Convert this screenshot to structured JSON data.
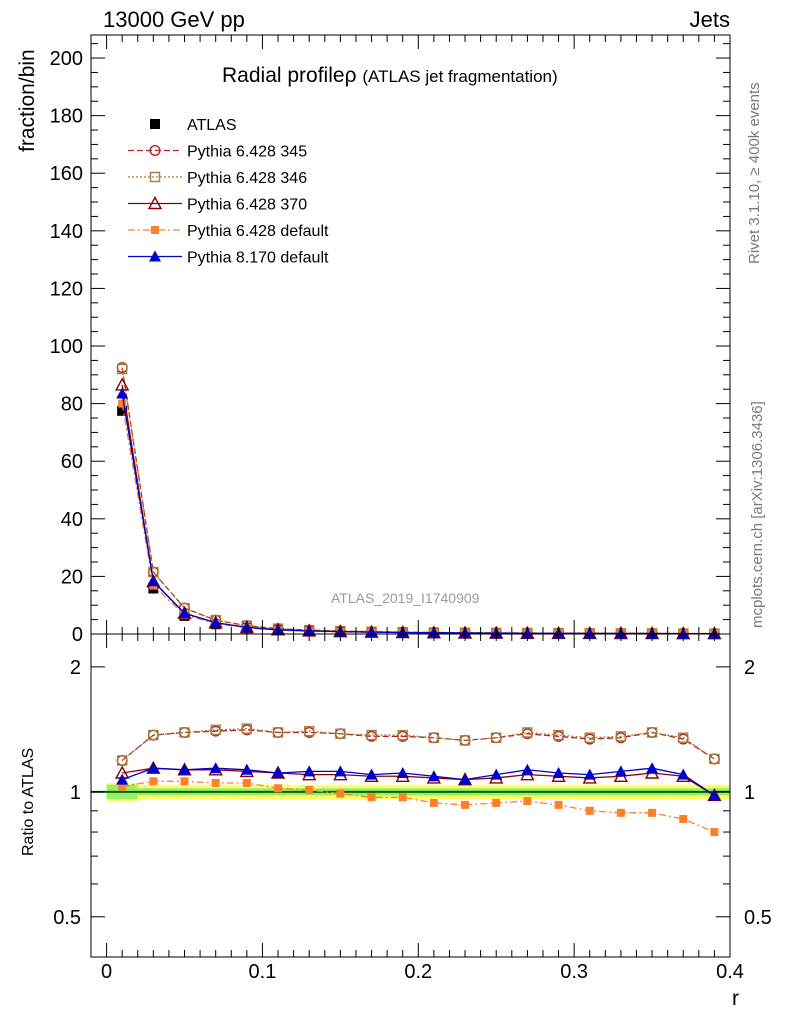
{
  "header": {
    "left": "13000 GeV pp",
    "right": "Jets"
  },
  "side": {
    "rivet": "Rivet 3.1.10, ≥ 400k events",
    "mcplots": "mcplots.cern.ch [arXiv:1306.3436]"
  },
  "chart_data": [
    {
      "type": "line",
      "title": "Radial profile",
      "title_symbol": "ρ",
      "subtitle": "(ATLAS jet fragmentation)",
      "ylabel": "fraction/bin",
      "xlabel": "r",
      "watermark": "ATLAS_2019_I1740909",
      "xlim": [
        -0.01,
        0.4
      ],
      "ylim": [
        0,
        208
      ],
      "yticks": [
        0,
        20,
        40,
        60,
        80,
        100,
        120,
        140,
        160,
        180,
        200
      ],
      "x": [
        0.01,
        0.03,
        0.05,
        0.07,
        0.09,
        0.11,
        0.13,
        0.15,
        0.17,
        0.19,
        0.21,
        0.23,
        0.25,
        0.27,
        0.29,
        0.31,
        0.33,
        0.35,
        0.37,
        0.39
      ],
      "legend_position": "top-left",
      "series": [
        {
          "name": "ATLAS",
          "color": "#000000",
          "marker": "square-filled",
          "dash": "none",
          "values": [
            77.5,
            15.8,
            6.3,
            3.4,
            2.0,
            1.3,
            0.95,
            0.72,
            0.57,
            0.46,
            0.38,
            0.32,
            0.27,
            0.23,
            0.2,
            0.17,
            0.15,
            0.13,
            0.12,
            0.11
          ]
        },
        {
          "name": "Pythia 6.428 345",
          "color": "#b22222",
          "marker": "circle-open",
          "dash": "6,3",
          "values": [
            92.5,
            21.5,
            9.0,
            4.8,
            2.9,
            1.85,
            1.35,
            1.02,
            0.8,
            0.64,
            0.52,
            0.44,
            0.38,
            0.33,
            0.28,
            0.24,
            0.21,
            0.19,
            0.16,
            0.14
          ]
        },
        {
          "name": "Pythia 6.428 346",
          "color": "#a67c39",
          "marker": "square-open",
          "dash": "2,2",
          "values": [
            92.0,
            21.5,
            9.0,
            4.8,
            2.9,
            1.85,
            1.35,
            1.02,
            0.8,
            0.64,
            0.52,
            0.44,
            0.38,
            0.33,
            0.28,
            0.24,
            0.21,
            0.19,
            0.16,
            0.14
          ]
        },
        {
          "name": "Pythia 6.428 370",
          "color": "#8b0000",
          "marker": "triangle-open",
          "dash": "none",
          "values": [
            86.5,
            18.2,
            7.2,
            3.9,
            2.3,
            1.45,
            1.08,
            0.82,
            0.64,
            0.52,
            0.42,
            0.35,
            0.3,
            0.26,
            0.22,
            0.19,
            0.17,
            0.15,
            0.13,
            0.11
          ]
        },
        {
          "name": "Pythia 6.428 default",
          "color": "#ff7f2a",
          "marker": "square-filled-small",
          "dash": "7,3,2,3",
          "values": [
            80.0,
            16.8,
            6.7,
            3.6,
            2.1,
            1.33,
            0.97,
            0.72,
            0.56,
            0.45,
            0.36,
            0.3,
            0.26,
            0.22,
            0.19,
            0.16,
            0.14,
            0.12,
            0.1,
            0.09
          ]
        },
        {
          "name": "Pythia 8.170 default",
          "color": "#0000cd",
          "marker": "triangle-filled",
          "dash": "none",
          "values": [
            83.5,
            18.3,
            7.2,
            3.9,
            2.3,
            1.46,
            1.08,
            0.82,
            0.64,
            0.52,
            0.42,
            0.35,
            0.31,
            0.27,
            0.23,
            0.19,
            0.17,
            0.15,
            0.13,
            0.11
          ]
        }
      ]
    },
    {
      "type": "line",
      "ylabel": "Ratio to ATLAS",
      "xlabel": "r",
      "log_scale_y": true,
      "xlim": [
        -0.01,
        0.4
      ],
      "ylim": [
        0.4,
        2.4
      ],
      "yticks": [
        0.5,
        1,
        2
      ],
      "xticks": [
        0,
        0.1,
        0.2,
        0.3,
        0.4
      ],
      "x": [
        0.01,
        0.03,
        0.05,
        0.07,
        0.09,
        0.11,
        0.13,
        0.15,
        0.17,
        0.19,
        0.21,
        0.23,
        0.25,
        0.27,
        0.29,
        0.31,
        0.33,
        0.35,
        0.37,
        0.39
      ],
      "band_colors": [
        "#ffff66",
        "#99ee66"
      ],
      "reference_line_color": "#006400",
      "series": [
        {
          "name": "Pythia 6.428 345",
          "color": "#b22222",
          "marker": "circle-open",
          "dash": "6,3",
          "values": [
            1.19,
            1.37,
            1.39,
            1.4,
            1.41,
            1.39,
            1.39,
            1.38,
            1.36,
            1.36,
            1.35,
            1.33,
            1.35,
            1.38,
            1.36,
            1.34,
            1.35,
            1.39,
            1.34,
            1.2
          ]
        },
        {
          "name": "Pythia 6.428 346",
          "color": "#a67c39",
          "marker": "square-open",
          "dash": "2,2",
          "values": [
            1.19,
            1.37,
            1.39,
            1.41,
            1.42,
            1.39,
            1.4,
            1.38,
            1.37,
            1.37,
            1.35,
            1.33,
            1.35,
            1.39,
            1.37,
            1.35,
            1.36,
            1.39,
            1.35,
            1.2
          ]
        },
        {
          "name": "Pythia 6.428 370",
          "color": "#8b0000",
          "marker": "triangle-open",
          "dash": "none",
          "values": [
            1.11,
            1.14,
            1.13,
            1.13,
            1.12,
            1.11,
            1.1,
            1.1,
            1.09,
            1.09,
            1.08,
            1.07,
            1.08,
            1.1,
            1.09,
            1.08,
            1.09,
            1.11,
            1.09,
            0.98
          ]
        },
        {
          "name": "Pythia 6.428 default",
          "color": "#ff7f2a",
          "marker": "square-filled-small",
          "dash": "7,3,2,3",
          "values": [
            1.03,
            1.06,
            1.06,
            1.05,
            1.05,
            1.02,
            1.01,
            0.99,
            0.97,
            0.97,
            0.94,
            0.93,
            0.94,
            0.95,
            0.93,
            0.9,
            0.89,
            0.89,
            0.86,
            0.8
          ]
        },
        {
          "name": "Pythia 8.170 default",
          "color": "#0000cd",
          "marker": "triangle-filled",
          "dash": "none",
          "values": [
            1.07,
            1.14,
            1.13,
            1.14,
            1.13,
            1.11,
            1.12,
            1.12,
            1.1,
            1.11,
            1.09,
            1.07,
            1.1,
            1.13,
            1.11,
            1.1,
            1.12,
            1.14,
            1.1,
            0.98
          ]
        }
      ],
      "reference_band": {
        "inner": [
          0.04,
          0.02,
          0.02,
          0.02,
          0.02,
          0.02,
          0.02,
          0.02,
          0.02,
          0.02,
          0.02,
          0.02,
          0.02,
          0.02,
          0.02,
          0.02,
          0.02,
          0.02,
          0.02,
          0.02
        ],
        "outer": [
          0.05,
          0.04,
          0.04,
          0.04,
          0.04,
          0.04,
          0.04,
          0.04,
          0.04,
          0.04,
          0.04,
          0.04,
          0.04,
          0.04,
          0.04,
          0.04,
          0.04,
          0.04,
          0.04,
          0.04
        ]
      }
    }
  ]
}
